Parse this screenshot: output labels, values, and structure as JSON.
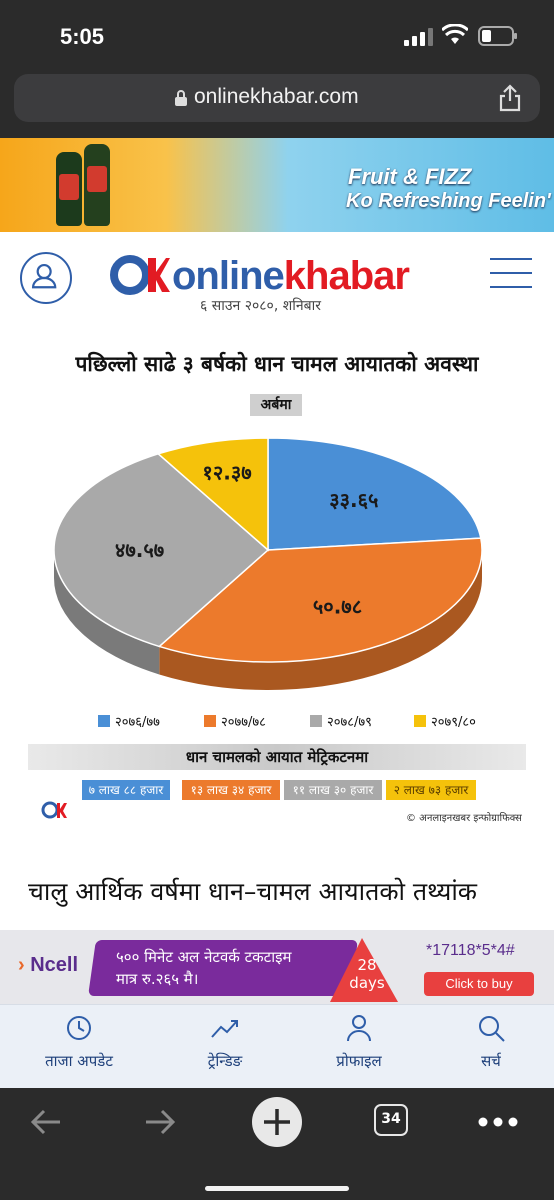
{
  "status_bar": {
    "time": "5:05"
  },
  "browser": {
    "url": "onlinekhabar.com",
    "tab_count": "34"
  },
  "banner_ad": {
    "line1": "Fruit & FIZZ",
    "line2": "Ko Refreshing Feelin'"
  },
  "site": {
    "logo_part1": "online",
    "logo_part2": "khabar",
    "date": "६ साउन २०८०, शनिबार"
  },
  "infographic": {
    "title": "पछिल्लो साढे ३ बर्षको धान चामल आयातको अवस्था",
    "unit": "अर्बमा",
    "band_title": "धान चामलको आयात मेट्रिकटनमा",
    "volume_boxes": [
      "७ लाख ८८ हजार",
      "१३ लाख ३४ हजार",
      "११ लाख ३० हजार",
      "२ लाख ७३ हजार"
    ],
    "credit": "© अनलाइनखबर इन्फोग्राफिक्स"
  },
  "chart_data": {
    "type": "pie",
    "title": "पछिल्लो साढे ३ बर्षको धान चामल आयातको अवस्था",
    "categories": [
      "२०७६/७७",
      "२०७७/७८",
      "२०७८/७९",
      "२०७९/८०"
    ],
    "values": [
      33.65,
      50.78,
      47.57,
      12.37
    ],
    "value_labels": [
      "३३.६५",
      "५०.७८",
      "४७.५७",
      "१२.३७"
    ],
    "colors": [
      "#4a8fd6",
      "#ec7a2c",
      "#a9a9a9",
      "#f5c20b"
    ],
    "legend_position": "bottom"
  },
  "article": {
    "heading": "चालु आर्थिक वर्षमा धान–चामल आयातको तथ्यांक"
  },
  "ncell_ad": {
    "brand": "Ncell",
    "promo_line1": "५०० मिनेट अल नेटवर्क टकटाइम",
    "promo_line2": "मात्र रु.२६५ मै।",
    "days_num": "28",
    "days_word": "days",
    "code": "*17118*5*4#",
    "cta": "Click to buy"
  },
  "bottom_nav": [
    {
      "label": "ताजा अपडेट",
      "icon": "clock-icon"
    },
    {
      "label": "ट्रेन्डिङ",
      "icon": "trending-icon"
    },
    {
      "label": "प्रोफाइल",
      "icon": "profile-icon"
    },
    {
      "label": "सर्च",
      "icon": "search-icon"
    }
  ]
}
